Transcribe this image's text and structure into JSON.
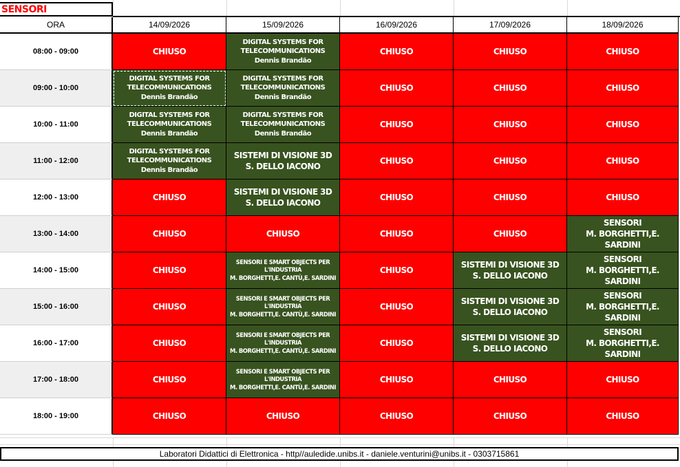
{
  "title": "SENSORI",
  "ora_label": "ORA",
  "dates": [
    "14/09/2026",
    "15/09/2026",
    "16/09/2026",
    "17/09/2026",
    "18/09/2026"
  ],
  "times": [
    "08:00 - 09:00",
    "09:00 - 10:00",
    "10:00 - 11:00",
    "11:00 - 12:00",
    "12:00 - 13:00",
    "13:00 - 14:00",
    "14:00 - 15:00",
    "15:00 - 16:00",
    "16:00 - 17:00",
    "17:00 - 18:00",
    "18:00 - 19:00"
  ],
  "schedule": [
    [
      {
        "t": "c",
        "l1": "CHIUSO"
      },
      {
        "t": "b",
        "s": "s",
        "l1": "DIGITAL SYSTEMS FOR",
        "l2": "TELECOMMUNICATIONS",
        "l3": "Dennis Brandão"
      },
      {
        "t": "c",
        "l1": "CHIUSO"
      },
      {
        "t": "c",
        "l1": "CHIUSO"
      },
      {
        "t": "c",
        "l1": "CHIUSO"
      }
    ],
    [
      {
        "t": "b",
        "s": "s",
        "l1": "DIGITAL SYSTEMS FOR",
        "l2": "TELECOMMUNICATIONS",
        "l3": "Dennis Brandão",
        "sel": true
      },
      {
        "t": "b",
        "s": "s",
        "l1": "DIGITAL SYSTEMS FOR",
        "l2": "TELECOMMUNICATIONS",
        "l3": "Dennis Brandão"
      },
      {
        "t": "c",
        "l1": "CHIUSO"
      },
      {
        "t": "c",
        "l1": "CHIUSO"
      },
      {
        "t": "c",
        "l1": "CHIUSO"
      }
    ],
    [
      {
        "t": "b",
        "s": "s",
        "l1": "DIGITAL SYSTEMS FOR",
        "l2": "TELECOMMUNICATIONS",
        "l3": "Dennis Brandão"
      },
      {
        "t": "b",
        "s": "s",
        "l1": "DIGITAL SYSTEMS FOR",
        "l2": "TELECOMMUNICATIONS",
        "l3": "Dennis Brandão"
      },
      {
        "t": "c",
        "l1": "CHIUSO"
      },
      {
        "t": "c",
        "l1": "CHIUSO"
      },
      {
        "t": "c",
        "l1": "CHIUSO"
      }
    ],
    [
      {
        "t": "b",
        "s": "s",
        "l1": "DIGITAL SYSTEMS FOR",
        "l2": "TELECOMMUNICATIONS",
        "l3": "Dennis Brandão"
      },
      {
        "t": "b",
        "s": "lg",
        "l1": "SISTEMI DI VISIONE 3D",
        "l2": "S. DELLO IACONO"
      },
      {
        "t": "c",
        "l1": "CHIUSO"
      },
      {
        "t": "c",
        "l1": "CHIUSO"
      },
      {
        "t": "c",
        "l1": "CHIUSO"
      }
    ],
    [
      {
        "t": "c",
        "l1": "CHIUSO"
      },
      {
        "t": "b",
        "s": "lg",
        "l1": "SISTEMI DI VISIONE 3D",
        "l2": "S. DELLO IACONO"
      },
      {
        "t": "c",
        "l1": "CHIUSO"
      },
      {
        "t": "c",
        "l1": "CHIUSO"
      },
      {
        "t": "c",
        "l1": "CHIUSO"
      }
    ],
    [
      {
        "t": "c",
        "l1": "CHIUSO"
      },
      {
        "t": "c",
        "l1": "CHIUSO"
      },
      {
        "t": "c",
        "l1": "CHIUSO"
      },
      {
        "t": "c",
        "l1": "CHIUSO"
      },
      {
        "t": "b",
        "s": "lg",
        "l1": "SENSORI",
        "l2": "M. BORGHETTI,E. SARDINI"
      }
    ],
    [
      {
        "t": "c",
        "l1": "CHIUSO"
      },
      {
        "t": "b",
        "s": "xs",
        "l1": "SENSORI E SMART OBJECTS PER L'INDUSTRIA",
        "l2": "M. BORGHETTI,E. CANTÙ,E. SARDINI"
      },
      {
        "t": "c",
        "l1": "CHIUSO"
      },
      {
        "t": "b",
        "s": "lg",
        "l1": "SISTEMI DI VISIONE 3D",
        "l2": "S. DELLO IACONO"
      },
      {
        "t": "b",
        "s": "lg",
        "l1": "SENSORI",
        "l2": "M. BORGHETTI,E. SARDINI"
      }
    ],
    [
      {
        "t": "c",
        "l1": "CHIUSO"
      },
      {
        "t": "b",
        "s": "xs",
        "l1": "SENSORI E SMART OBJECTS PER L'INDUSTRIA",
        "l2": "M. BORGHETTI,E. CANTÙ,E. SARDINI"
      },
      {
        "t": "c",
        "l1": "CHIUSO"
      },
      {
        "t": "b",
        "s": "lg",
        "l1": "SISTEMI DI VISIONE 3D",
        "l2": "S. DELLO IACONO"
      },
      {
        "t": "b",
        "s": "lg",
        "l1": "SENSORI",
        "l2": "M. BORGHETTI,E. SARDINI"
      }
    ],
    [
      {
        "t": "c",
        "l1": "CHIUSO"
      },
      {
        "t": "b",
        "s": "xs",
        "l1": "SENSORI E SMART OBJECTS PER L'INDUSTRIA",
        "l2": "M. BORGHETTI,E. CANTÙ,E. SARDINI"
      },
      {
        "t": "c",
        "l1": "CHIUSO"
      },
      {
        "t": "b",
        "s": "lg",
        "l1": "SISTEMI DI VISIONE 3D",
        "l2": "S. DELLO IACONO"
      },
      {
        "t": "b",
        "s": "lg",
        "l1": "SENSORI",
        "l2": "M. BORGHETTI,E. SARDINI"
      }
    ],
    [
      {
        "t": "c",
        "l1": "CHIUSO"
      },
      {
        "t": "b",
        "s": "xs",
        "l1": "SENSORI E SMART OBJECTS PER L'INDUSTRIA",
        "l2": "M. BORGHETTI,E. CANTÙ,E. SARDINI"
      },
      {
        "t": "c",
        "l1": "CHIUSO"
      },
      {
        "t": "c",
        "l1": "CHIUSO"
      },
      {
        "t": "c",
        "l1": "CHIUSO"
      }
    ],
    [
      {
        "t": "c",
        "l1": "CHIUSO"
      },
      {
        "t": "c",
        "l1": "CHIUSO"
      },
      {
        "t": "c",
        "l1": "CHIUSO"
      },
      {
        "t": "c",
        "l1": "CHIUSO"
      },
      {
        "t": "c",
        "l1": "CHIUSO"
      }
    ]
  ],
  "footer": "Laboratori Didattici di Elettronica - http//auledide.unibs.it - daniele.venturini@unibs.it - 0303715861",
  "colors": {
    "closed": "#ff0000",
    "booked": "#38531f",
    "title": "#ff0000"
  }
}
